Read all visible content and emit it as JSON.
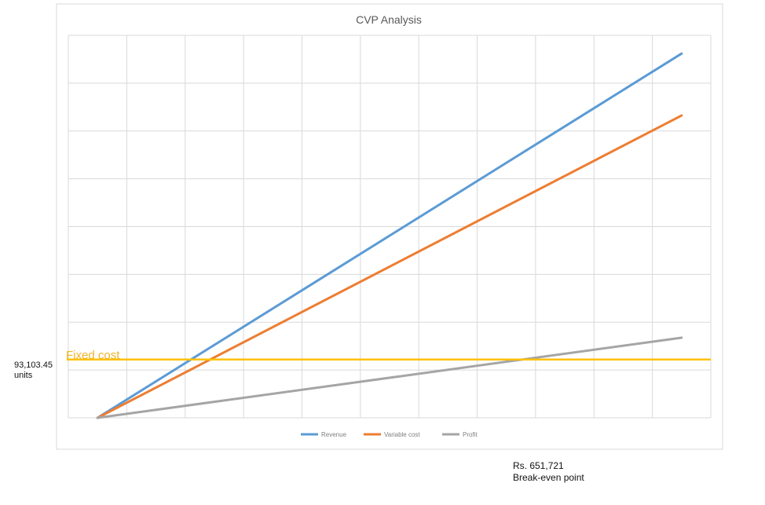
{
  "chart_data": {
    "type": "line",
    "title": "CVP Analysis",
    "x": [
      0,
      10
    ],
    "series": [
      {
        "name": "Revenue",
        "values": [
          0,
          100
        ],
        "color": "#5b9bd5"
      },
      {
        "name": "Variable cost",
        "values": [
          0,
          83
        ],
        "color": "#ed7d31"
      },
      {
        "name": "Profit",
        "values": [
          0,
          22
        ],
        "color": "#a5a5a5"
      }
    ],
    "fixed_cost": {
      "label": "Fixed cost",
      "value": 16,
      "color": "#ffc000"
    },
    "xlim": [
      -0.5,
      10.5
    ],
    "ylim": [
      0,
      105
    ],
    "grid": true,
    "legend_position": "bottom"
  },
  "annotations": {
    "units_value": "93,103.45",
    "units_label": "units",
    "breakeven_value": "Rs. 651,721",
    "breakeven_label": "Break-even point"
  }
}
